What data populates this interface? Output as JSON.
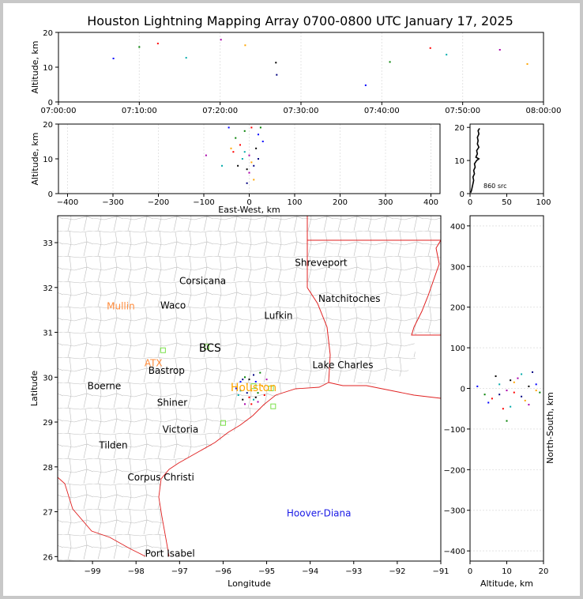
{
  "title": "Houston Lightning Mapping Array 0700-0800 UTC January 17, 2025",
  "colors": {
    "state_border": "#e02020",
    "county_line": "#b8b8b8",
    "city_label": "#000000",
    "radar_label": "#ff8c3c",
    "network_label": "#1a1ae6",
    "station_marker": "#7be04a",
    "houston_label": "#ffa500"
  },
  "chart_data": [
    {
      "id": "time_height",
      "type": "scatter",
      "xlabel": "",
      "ylabel": "Altitude, km",
      "x_ticks": [
        "07:00:00",
        "07:10:00",
        "07:20:00",
        "07:30:00",
        "07:40:00",
        "07:50:00",
        "08:00:00"
      ],
      "xlim_minutes": [
        0,
        60
      ],
      "ylim": [
        0,
        20
      ],
      "y_ticks": [
        0,
        10,
        20
      ],
      "points": [
        [
          6.8,
          12.5
        ],
        [
          10.0,
          15.8
        ],
        [
          12.3,
          16.8
        ],
        [
          15.8,
          12.7
        ],
        [
          20.1,
          17.9
        ],
        [
          23.1,
          16.3
        ],
        [
          27.0,
          7.8
        ],
        [
          26.9,
          11.3
        ],
        [
          38.0,
          4.8
        ],
        [
          41.0,
          11.5
        ],
        [
          46.0,
          15.5
        ],
        [
          48.0,
          13.6
        ],
        [
          54.6,
          15.0
        ],
        [
          58.0,
          10.9
        ]
      ]
    },
    {
      "id": "ew_height",
      "type": "scatter",
      "xlabel": "East-West, km",
      "ylabel": "Altitude, km",
      "xlim": [
        -420,
        420
      ],
      "x_ticks": [
        -400,
        -300,
        -200,
        -100,
        0,
        100,
        200,
        300,
        400
      ],
      "ylim": [
        0,
        20
      ],
      "y_ticks": [
        0,
        10,
        20
      ],
      "points": [
        [
          -45,
          19
        ],
        [
          -30,
          16
        ],
        [
          -20,
          14
        ],
        [
          -10,
          12
        ],
        [
          0,
          11
        ],
        [
          5,
          9
        ],
        [
          10,
          8
        ],
        [
          15,
          13
        ],
        [
          20,
          17
        ],
        [
          25,
          19
        ],
        [
          -35,
          12
        ],
        [
          -15,
          10
        ],
        [
          0,
          6
        ],
        [
          10,
          4
        ],
        [
          -5,
          3
        ],
        [
          -25,
          8
        ],
        [
          30,
          15
        ],
        [
          -10,
          18
        ],
        [
          5,
          19
        ],
        [
          -60,
          8
        ],
        [
          -95,
          11
        ],
        [
          -40,
          13
        ],
        [
          20,
          10
        ],
        [
          -5,
          7
        ]
      ]
    },
    {
      "id": "altitude_histogram",
      "type": "line",
      "xlim": [
        0,
        100
      ],
      "x_ticks": [
        0,
        50,
        100
      ],
      "ylim": [
        0,
        21
      ],
      "y_ticks": [
        0,
        10,
        20
      ],
      "annotation": "860 src",
      "profile": [
        [
          1,
          0.3
        ],
        [
          2,
          1
        ],
        [
          3,
          2
        ],
        [
          4,
          3
        ],
        [
          5,
          4
        ],
        [
          4,
          5
        ],
        [
          6,
          6
        ],
        [
          5,
          7
        ],
        [
          7,
          8
        ],
        [
          6,
          9
        ],
        [
          9,
          10
        ],
        [
          12,
          10.5
        ],
        [
          8,
          11
        ],
        [
          10,
          12
        ],
        [
          9,
          13
        ],
        [
          12,
          14
        ],
        [
          10,
          15
        ],
        [
          11,
          16
        ],
        [
          10,
          17
        ],
        [
          12,
          18
        ],
        [
          11,
          19
        ],
        [
          13,
          19.7
        ]
      ]
    },
    {
      "id": "plan_view",
      "type": "scatter",
      "xlabel": "Longitude",
      "ylabel": "Latitude",
      "xlim": [
        -99.8,
        -91.0
      ],
      "ylim": [
        25.9,
        33.6
      ],
      "x_ticks": [
        "−99",
        "−98",
        "−97",
        "−96",
        "−95",
        "−94",
        "−93",
        "−92",
        "−91"
      ],
      "y_ticks": [
        "26",
        "27",
        "28",
        "29",
        "30",
        "31",
        "32",
        "33"
      ],
      "cities": [
        {
          "name": "Shreveport",
          "lon": -93.75,
          "lat": 32.55
        },
        {
          "name": "Corsicana",
          "lon": -96.47,
          "lat": 32.15
        },
        {
          "name": "Natchitoches",
          "lon": -93.1,
          "lat": 31.75
        },
        {
          "name": "Waco",
          "lon": -97.15,
          "lat": 31.6
        },
        {
          "name": "Lufkin",
          "lon": -94.73,
          "lat": 31.37
        },
        {
          "name": "Bastrop",
          "lon": -97.3,
          "lat": 30.15
        },
        {
          "name": "Lake Charles",
          "lon": -93.25,
          "lat": 30.27
        },
        {
          "name": "Boerne",
          "lon": -98.73,
          "lat": 29.8
        },
        {
          "name": "Shiner",
          "lon": -97.17,
          "lat": 29.43
        },
        {
          "name": "Victoria",
          "lon": -96.98,
          "lat": 28.83
        },
        {
          "name": "Tilden",
          "lon": -98.52,
          "lat": 28.48
        },
        {
          "name": "Corpus Christi",
          "lon": -97.43,
          "lat": 27.77
        },
        {
          "name": "Port Isabel",
          "lon": -97.22,
          "lat": 26.07
        }
      ],
      "radars": [
        {
          "name": "Mullin",
          "lon": -98.35,
          "lat": 31.58
        },
        {
          "name": "ATX",
          "lon": -97.6,
          "lat": 30.31
        }
      ],
      "bcs": {
        "name": "BCS",
        "lon": -96.3,
        "lat": 30.66
      },
      "houston": {
        "name": "Houston",
        "lon": -95.3,
        "lat": 29.78
      },
      "network": {
        "name": "Hoover-Diana",
        "lon": -93.8,
        "lat": 26.97
      },
      "stations": [
        [
          -97.38,
          30.6
        ],
        [
          -96.38,
          30.68
        ],
        [
          -96.0,
          28.98
        ],
        [
          -94.85,
          29.35
        ],
        [
          -95.3,
          29.8
        ],
        [
          -94.9,
          29.75
        ]
      ],
      "points": [
        [
          -95.6,
          29.9
        ],
        [
          -95.5,
          30.0
        ],
        [
          -95.4,
          29.55
        ],
        [
          -95.3,
          29.5
        ],
        [
          -95.2,
          29.45
        ],
        [
          -95.35,
          29.7
        ],
        [
          -95.45,
          29.65
        ],
        [
          -95.55,
          29.5
        ],
        [
          -95.25,
          29.9
        ],
        [
          -95.15,
          30.1
        ],
        [
          -95.05,
          29.6
        ],
        [
          -95.65,
          29.6
        ],
        [
          -95.5,
          29.4
        ],
        [
          -95.1,
          29.8
        ],
        [
          -95.3,
          30.05
        ],
        [
          -95.4,
          29.95
        ],
        [
          -95.7,
          29.75
        ],
        [
          -95.2,
          29.65
        ],
        [
          -95.35,
          29.4
        ],
        [
          -95.6,
          29.7
        ],
        [
          -95.0,
          29.95
        ],
        [
          -95.45,
          29.85
        ],
        [
          -95.55,
          29.95
        ],
        [
          -95.25,
          29.55
        ]
      ]
    },
    {
      "id": "height_ns",
      "type": "scatter",
      "xlabel": "Altitude, km",
      "ylabel": "North-South, km",
      "xlim": [
        0,
        20
      ],
      "x_ticks": [
        0,
        10,
        20
      ],
      "ylim": [
        -425,
        425
      ],
      "y_ticks": [
        -400,
        -300,
        -200,
        -100,
        0,
        100,
        200,
        300,
        400
      ],
      "points": [
        [
          2,
          5
        ],
        [
          4,
          -15
        ],
        [
          6,
          -25
        ],
        [
          8,
          10
        ],
        [
          10,
          -5
        ],
        [
          12,
          15
        ],
        [
          14,
          -20
        ],
        [
          16,
          5
        ],
        [
          18,
          10
        ],
        [
          19,
          -10
        ],
        [
          9,
          -50
        ],
        [
          11,
          -45
        ],
        [
          13,
          25
        ],
        [
          15,
          -30
        ],
        [
          17,
          40
        ],
        [
          7,
          30
        ],
        [
          5,
          -35
        ],
        [
          10,
          -80
        ],
        [
          12,
          -10
        ],
        [
          14,
          35
        ],
        [
          16,
          -40
        ],
        [
          18,
          -5
        ],
        [
          8,
          -15
        ],
        [
          11,
          20
        ]
      ]
    }
  ]
}
